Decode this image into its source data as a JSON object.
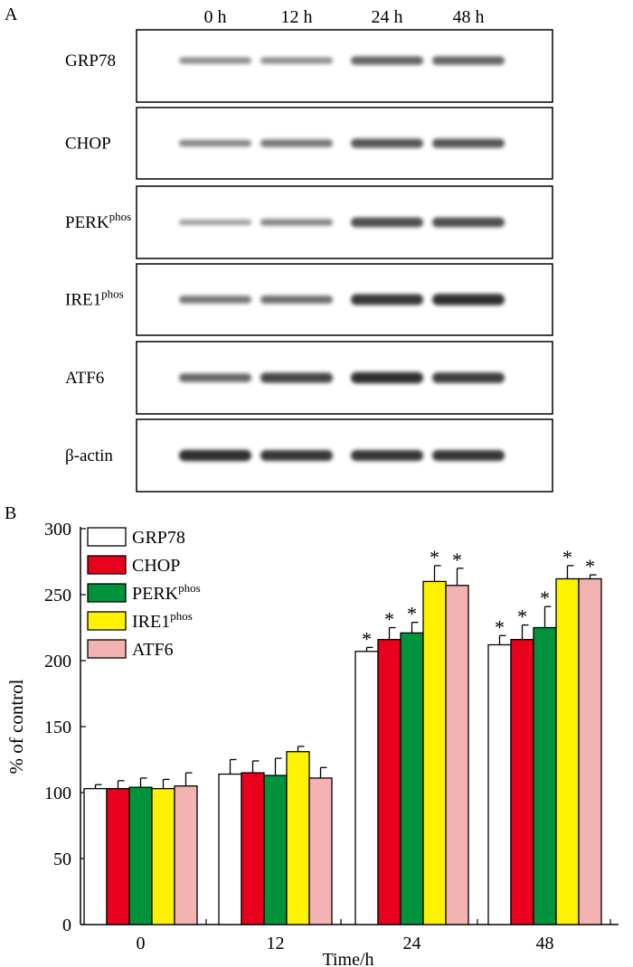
{
  "panel_a": {
    "label": "A",
    "time_labels": [
      "0 h",
      "12 h",
      "24 h",
      "48 h"
    ],
    "blots": [
      {
        "name": "GRP78",
        "sup": "",
        "intensities": [
          0.35,
          0.35,
          0.6,
          0.6
        ]
      },
      {
        "name": "CHOP",
        "sup": "",
        "intensities": [
          0.4,
          0.5,
          0.7,
          0.7
        ]
      },
      {
        "name": "PERK",
        "sup": "phos",
        "intensities": [
          0.25,
          0.4,
          0.75,
          0.75
        ]
      },
      {
        "name": "IRE1",
        "sup": "phos",
        "intensities": [
          0.5,
          0.55,
          0.9,
          0.95
        ]
      },
      {
        "name": "ATF6",
        "sup": "",
        "intensities": [
          0.6,
          0.8,
          0.95,
          0.85
        ]
      },
      {
        "name": "β-actin",
        "sup": "",
        "intensities": [
          0.95,
          0.9,
          0.9,
          0.9
        ]
      }
    ]
  },
  "chart_data": {
    "panel_label": "B",
    "type": "bar",
    "title": "",
    "xlabel": "Time/h",
    "ylabel": "% of control",
    "ylim": [
      0,
      300
    ],
    "yticks": [
      0,
      50,
      100,
      150,
      200,
      250,
      300
    ],
    "categories": [
      "0",
      "12",
      "24",
      "48"
    ],
    "legend_position": "top-left",
    "significance_marker": "*",
    "series": [
      {
        "name": "GRP78",
        "sup": "",
        "color": "#ffffff",
        "values": [
          103,
          114,
          207,
          212
        ],
        "errors": [
          3,
          11,
          3,
          7
        ],
        "significant": [
          false,
          false,
          true,
          true
        ]
      },
      {
        "name": "CHOP",
        "sup": "",
        "color": "#e8001c",
        "values": [
          103,
          115,
          216,
          216
        ],
        "errors": [
          6,
          9,
          9,
          11
        ],
        "significant": [
          false,
          false,
          true,
          true
        ]
      },
      {
        "name": "PERK",
        "sup": "phos",
        "color": "#00933c",
        "values": [
          104,
          113,
          221,
          225
        ],
        "errors": [
          7,
          13,
          8,
          16
        ],
        "significant": [
          false,
          false,
          true,
          true
        ]
      },
      {
        "name": "IRE1",
        "sup": "phos",
        "color": "#fff200",
        "values": [
          103,
          131,
          260,
          262
        ],
        "errors": [
          7,
          4,
          12,
          10
        ],
        "significant": [
          false,
          false,
          true,
          true
        ]
      },
      {
        "name": "ATF6",
        "sup": "",
        "color": "#f4b3b3",
        "values": [
          105,
          111,
          257,
          262
        ],
        "errors": [
          10,
          8,
          13,
          3
        ],
        "significant": [
          false,
          false,
          true,
          true
        ]
      }
    ]
  }
}
